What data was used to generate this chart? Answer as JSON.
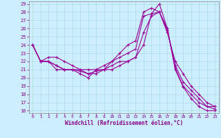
{
  "xlabel": "Windchill (Refroidissement éolien,°C)",
  "bg_color": "#cceeff",
  "line_color": "#990099",
  "series": [
    [
      24.0,
      22.0,
      22.0,
      21.0,
      21.0,
      21.0,
      20.5,
      20.0,
      21.0,
      21.0,
      22.0,
      23.0,
      24.0,
      24.5,
      28.0,
      28.5,
      28.0,
      26.0,
      21.0,
      18.9,
      17.5,
      16.5,
      16.0,
      16.0
    ],
    [
      24.0,
      22.0,
      22.5,
      22.5,
      22.0,
      21.5,
      21.0,
      21.0,
      21.0,
      21.5,
      22.0,
      22.5,
      23.0,
      23.5,
      27.5,
      27.8,
      28.0,
      25.5,
      22.0,
      20.5,
      19.0,
      18.0,
      17.0,
      16.5
    ],
    [
      24.0,
      22.0,
      22.0,
      21.5,
      21.0,
      21.0,
      20.8,
      20.5,
      20.5,
      21.0,
      21.0,
      21.5,
      22.0,
      22.5,
      25.5,
      27.5,
      28.0,
      25.8,
      21.5,
      19.5,
      18.5,
      17.5,
      16.5,
      16.2
    ],
    [
      24.0,
      22.0,
      22.0,
      21.5,
      21.0,
      21.0,
      21.0,
      20.5,
      20.8,
      21.0,
      21.5,
      22.0,
      22.0,
      22.5,
      24.0,
      27.8,
      29.0,
      26.0,
      21.2,
      19.0,
      18.0,
      17.0,
      16.5,
      16.5
    ]
  ],
  "xmin": 0,
  "xmax": 23,
  "ymin": 16,
  "ymax": 29,
  "yticks": [
    16,
    17,
    18,
    19,
    20,
    21,
    22,
    23,
    24,
    25,
    26,
    27,
    28,
    29
  ],
  "xticks": [
    0,
    1,
    2,
    3,
    4,
    5,
    6,
    7,
    8,
    9,
    10,
    11,
    12,
    13,
    14,
    15,
    16,
    17,
    18,
    19,
    20,
    21,
    22,
    23
  ],
  "grid_color": "#aadddd",
  "tick_color": "#880088",
  "label_color": "#000088"
}
